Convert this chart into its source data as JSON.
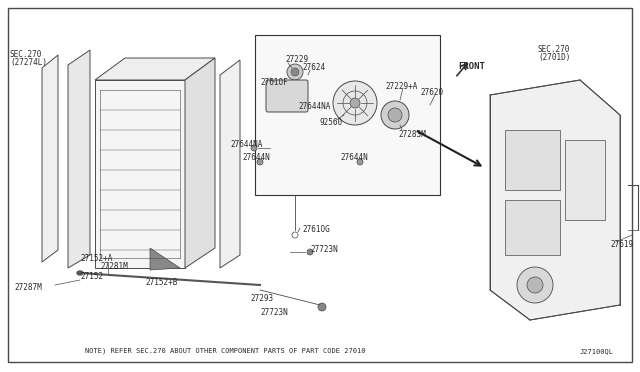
{
  "title": "",
  "background_color": "#ffffff",
  "border_color": "#000000",
  "line_color": "#4a4a4a",
  "text_color": "#2a2a2a",
  "note_text": "NOTE) REFER SEC.270 ABOUT OTHER COMPONENT PARTS OF PART CODE 27010",
  "doc_number": "J27100QL",
  "labels": {
    "sec270_left": "SEC.270\n(27274L)",
    "sec270_right": "SEC.270\n(2701D)",
    "front_label": "FRONT",
    "part_27229": "27229",
    "part_27624": "27624",
    "part_2761OF": "2761OF",
    "part_27644NA_top": "27644NA",
    "part_92560": "92560",
    "part_27229A": "27229+A",
    "part_27620": "27620",
    "part_27644NA_mid": "27644NA",
    "part_27644N_left": "27644N",
    "part_27644N_right": "27644N",
    "part_27283M": "27283M",
    "part_2761OG": "2761OG",
    "part_27723N_top": "27723N",
    "part_27152A": "27152+A",
    "part_27152": "27152",
    "part_27281M": "27281M",
    "part_27152B": "27152+B",
    "part_27287M": "27287M",
    "part_27293": "27293",
    "part_27723N_bot": "27723N",
    "part_27619": "27619"
  },
  "font_size_small": 5.5,
  "font_size_note": 5.0
}
